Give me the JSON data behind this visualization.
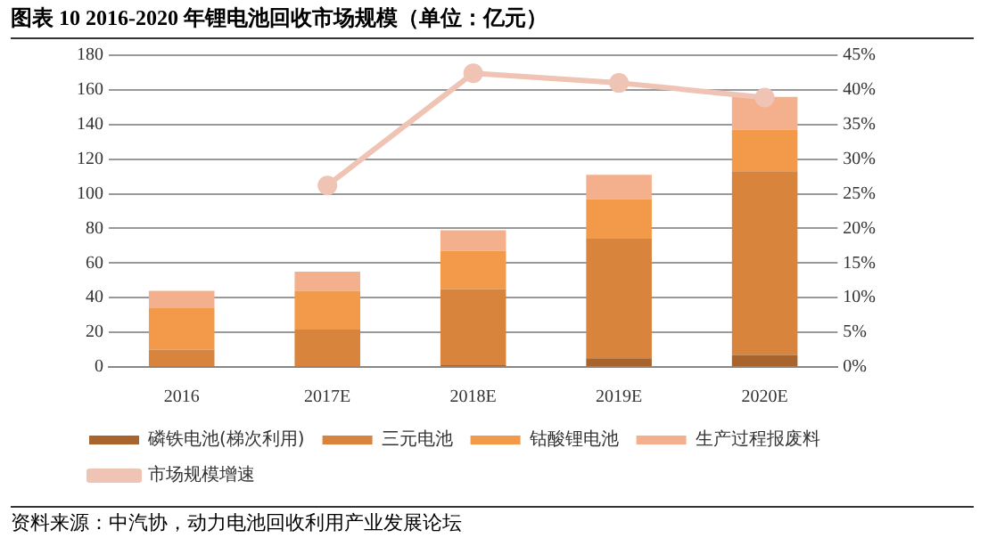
{
  "chart_data": {
    "type": "bar",
    "title": "图表 10 2016-2020 年锂电池回收市场规模（单位：亿元）",
    "categories": [
      "2016",
      "2017E",
      "2018E",
      "2019E",
      "2020E"
    ],
    "stacked": true,
    "series": [
      {
        "name": "磷铁电池(梯次利用)",
        "color": "#a8642c",
        "values": [
          0,
          0,
          1,
          5,
          7
        ]
      },
      {
        "name": "三元电池",
        "color": "#d8843c",
        "values": [
          10,
          22,
          44,
          69,
          106
        ]
      },
      {
        "name": "钴酸锂电池",
        "color": "#f29a4a",
        "values": [
          24,
          22,
          22,
          23,
          24
        ]
      },
      {
        "name": "生产过程报废料",
        "color": "#f4b08c",
        "values": [
          10,
          11,
          12,
          14,
          19
        ]
      },
      {
        "name": "市场规模增速",
        "type": "line",
        "axis": "y2",
        "color": "#f0c4b4",
        "marker": "circle",
        "values": [
          null,
          26.2,
          42.4,
          41.0,
          38.9
        ]
      }
    ],
    "ylim": [
      0,
      180
    ],
    "yticks": [
      0,
      20,
      40,
      60,
      80,
      100,
      120,
      140,
      160,
      180
    ],
    "y2lim": [
      0,
      45
    ],
    "y2ticks": [
      {
        "value": 0,
        "label": "0%"
      },
      {
        "value": 5,
        "label": "5%"
      },
      {
        "value": 10,
        "label": "10%"
      },
      {
        "value": 15,
        "label": "15%"
      },
      {
        "value": 20,
        "label": "20%"
      },
      {
        "value": 25,
        "label": "25%"
      },
      {
        "value": 30,
        "label": "30%"
      },
      {
        "value": 35,
        "label": "35%"
      },
      {
        "value": 40,
        "label": "40%"
      },
      {
        "value": 45,
        "label": "45%"
      }
    ],
    "grid": "y",
    "legend": "bottom",
    "annotations": [
      "资料来源：中汽协，动力电池回收利用产业发展论坛"
    ]
  }
}
